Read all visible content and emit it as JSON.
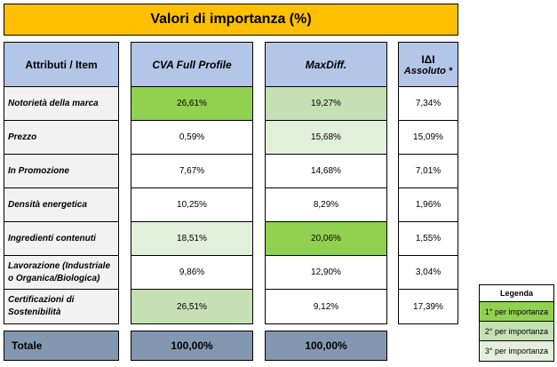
{
  "title": "Valori di importanza (%)",
  "headers": {
    "attr": "Attributi / Item",
    "cva": "CVA Full Profile",
    "maxdiff": "MaxDiff.",
    "abs_line1": "IΔI",
    "abs_line2": "Assoluto *"
  },
  "rows": [
    {
      "label": "Notorietà della marca",
      "cva": "26,61%",
      "maxdiff": "19,27%",
      "abs": "7,34%"
    },
    {
      "label": "Prezzo",
      "cva": "0,59%",
      "maxdiff": "15,68%",
      "abs": "15,09%"
    },
    {
      "label": "In Promozione",
      "cva": "7,67%",
      "maxdiff": "14,68%",
      "abs": "7,01%"
    },
    {
      "label": "Densità energetica",
      "cva": "10,25%",
      "maxdiff": "8,29%",
      "abs": "1,96%"
    },
    {
      "label": "Ingredienti contenuti",
      "cva": "18,51%",
      "maxdiff": "20,06%",
      "abs": "1,55%"
    },
    {
      "label": "Lavorazione (Industriale o Organica/Biologica)",
      "cva": "9,86%",
      "maxdiff": "12,90%",
      "abs": "3,04%"
    },
    {
      "label": "Certificazioni di Sostenibilità",
      "cva": "26,51%",
      "maxdiff": "9,12%",
      "abs": "17,39%"
    }
  ],
  "totals": {
    "label": "Totale",
    "cva": "100,00%",
    "maxdiff": "100,00%"
  },
  "legend": {
    "title": "Legenda",
    "items": [
      "1° per importanza",
      "2° per importanza",
      "3° per importanza"
    ]
  },
  "colors": {
    "first": "#92D050",
    "second": "#C6E0B4",
    "third": "#E2EFDA",
    "header": "#B4C6E7",
    "title": "#FFC000",
    "total": "#8497B0"
  },
  "chart_data": {
    "type": "table",
    "title": "Valori di importanza (%)",
    "columns": [
      "Attributi / Item",
      "CVA Full Profile",
      "MaxDiff.",
      "IΔI Assoluto *"
    ],
    "categories": [
      "Notorietà della marca",
      "Prezzo",
      "In Promozione",
      "Densità energetica",
      "Ingredienti contenuti",
      "Lavorazione (Industriale o Organica/Biologica)",
      "Certificazioni di Sostenibilità"
    ],
    "series": [
      {
        "name": "CVA Full Profile",
        "values": [
          26.61,
          0.59,
          7.67,
          10.25,
          18.51,
          9.86,
          26.51
        ]
      },
      {
        "name": "MaxDiff.",
        "values": [
          19.27,
          15.68,
          14.68,
          8.29,
          20.06,
          12.9,
          9.12
        ]
      },
      {
        "name": "IΔI Assoluto *",
        "values": [
          7.34,
          15.09,
          7.01,
          1.96,
          1.55,
          3.04,
          17.39
        ]
      }
    ],
    "totals": {
      "CVA Full Profile": 100.0,
      "MaxDiff.": 100.0
    },
    "rank_highlight": {
      "CVA Full Profile": [
        1,
        null,
        null,
        null,
        3,
        null,
        2
      ],
      "MaxDiff.": [
        2,
        3,
        null,
        null,
        1,
        null,
        null
      ]
    }
  }
}
